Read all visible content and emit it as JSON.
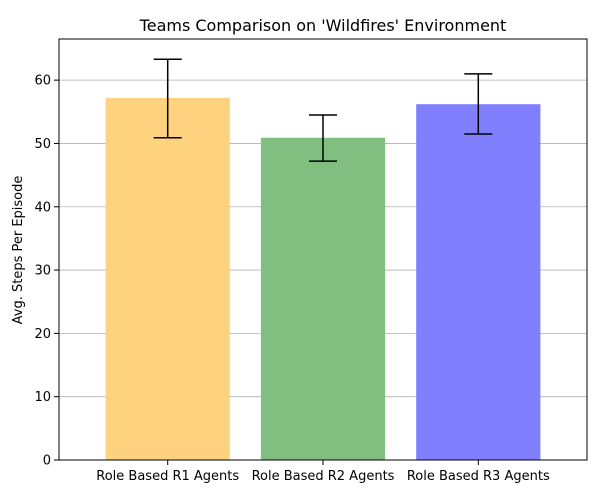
{
  "chart_data": {
    "type": "bar",
    "title": "Teams Comparison on 'Wildfires' Environment",
    "xlabel": "",
    "ylabel": "Avg. Steps Per Episode",
    "categories": [
      "Role Based R1 Agents",
      "Role Based R2 Agents",
      "Role Based R3 Agents"
    ],
    "values": [
      57.2,
      50.9,
      56.2
    ],
    "error_low": [
      50.9,
      47.2,
      51.5
    ],
    "error_high": [
      63.3,
      54.5,
      61.0
    ],
    "bar_colors": [
      "#ffd280",
      "#80bf80",
      "#8080ff"
    ],
    "ylim": [
      0,
      66.5
    ],
    "yticks": [
      0,
      10,
      20,
      30,
      40,
      50,
      60
    ],
    "grid": "y-axis",
    "legend": "none"
  }
}
